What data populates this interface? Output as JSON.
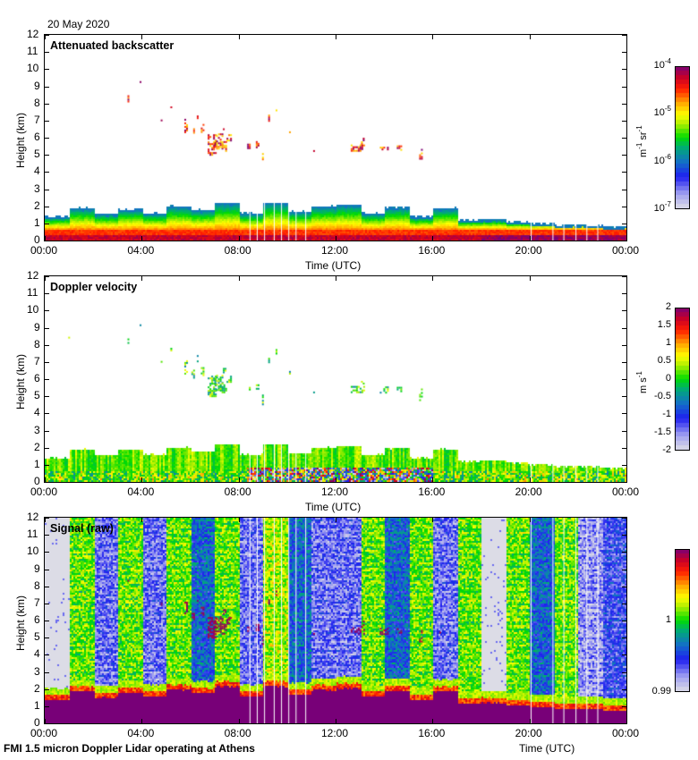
{
  "header": {
    "date": "20 May 2020"
  },
  "footer": {
    "text": "FMI 1.5 micron Doppler Lidar operating at Athens"
  },
  "chart_data": [
    {
      "type": "heatmap",
      "title": "Attenuated backscatter",
      "xlabel": "Time (UTC)",
      "ylabel": "Height (km)",
      "xticks": [
        "00:00",
        "04:00",
        "08:00",
        "12:00",
        "16:00",
        "20:00",
        "00:00"
      ],
      "xlim_hours": [
        0,
        24
      ],
      "yticks": [
        0,
        1,
        2,
        3,
        4,
        5,
        6,
        7,
        8,
        9,
        10,
        11,
        12
      ],
      "ylim": [
        0,
        12
      ],
      "colorbar": {
        "label": "m-1 sr-1",
        "label_base": [
          "m",
          " sr"
        ],
        "label_exp": [
          "-1",
          "-1"
        ],
        "scale": "log",
        "range": [
          1e-07,
          0.0001
        ],
        "ticks": [
          {
            "base": "10",
            "exp": "-4"
          },
          {
            "base": "10",
            "exp": "-5"
          },
          {
            "base": "10",
            "exp": "-6"
          },
          {
            "base": "10",
            "exp": "-7"
          }
        ]
      },
      "features": {
        "boundary_layer_top_km": [
          1.4,
          1.9,
          1.55,
          1.85,
          1.6,
          2.0,
          1.8,
          2.2,
          1.6,
          2.2,
          1.7,
          2.0,
          2.1,
          1.6,
          1.95,
          1.4,
          1.9,
          1.2,
          1.25,
          1.1,
          1.0,
          0.9,
          0.9,
          0.8
        ],
        "cloud_layer_km": [
          5,
          6.5
        ],
        "cloud_time_hours": [
          6.0,
          10.5,
          12.7,
          15.6
        ]
      }
    },
    {
      "type": "heatmap",
      "title": "Doppler velocity",
      "xlabel": "Time (UTC)",
      "ylabel": "Height (km)",
      "xticks": [
        "00:00",
        "04:00",
        "08:00",
        "12:00",
        "16:00",
        "20:00",
        "00:00"
      ],
      "xlim_hours": [
        0,
        24
      ],
      "yticks": [
        0,
        1,
        2,
        3,
        4,
        5,
        6,
        7,
        8,
        9,
        10,
        11,
        12
      ],
      "ylim": [
        0,
        12
      ],
      "colorbar": {
        "label": "m s-1",
        "scale": "linear",
        "range": [
          -2,
          2
        ],
        "ticks": [
          "2",
          "1.5",
          "1",
          "0.5",
          "0",
          "-0.5",
          "-1",
          "-1.5",
          "-2"
        ]
      }
    },
    {
      "type": "heatmap",
      "title": "Signal (raw)",
      "xlabel": "Time (UTC)",
      "ylabel": "Height (km)",
      "xticks": [
        "00:00",
        "04:00",
        "08:00",
        "12:00",
        "16:00",
        "20:00",
        "00:00"
      ],
      "xlim_hours": [
        0,
        24
      ],
      "yticks": [
        0,
        1,
        2,
        3,
        4,
        5,
        6,
        7,
        8,
        9,
        10,
        11,
        12
      ],
      "ylim": [
        0,
        12
      ],
      "colorbar": {
        "label": "",
        "scale": "linear",
        "range": [
          0.99,
          1.01
        ],
        "ticks": [
          "1",
          "0.99"
        ]
      },
      "features": {
        "hourly_background_level": [
          0.0,
          0.55,
          0.15,
          0.55,
          0.15,
          0.55,
          0.3,
          0.55,
          0.15,
          0.6,
          0.3,
          0.15,
          0.15,
          0.55,
          0.3,
          0.55,
          0.15,
          0.55,
          0.0,
          0.55,
          0.3,
          0.55,
          0.1,
          0.2
        ],
        "surface_layer_top_km": [
          1.4,
          1.9,
          1.55,
          1.85,
          1.6,
          2.0,
          1.8,
          2.2,
          1.6,
          2.2,
          1.7,
          2.0,
          2.1,
          1.6,
          1.95,
          1.4,
          1.9,
          1.2,
          1.25,
          1.1,
          1.0,
          0.9,
          0.9,
          0.8
        ]
      }
    }
  ]
}
